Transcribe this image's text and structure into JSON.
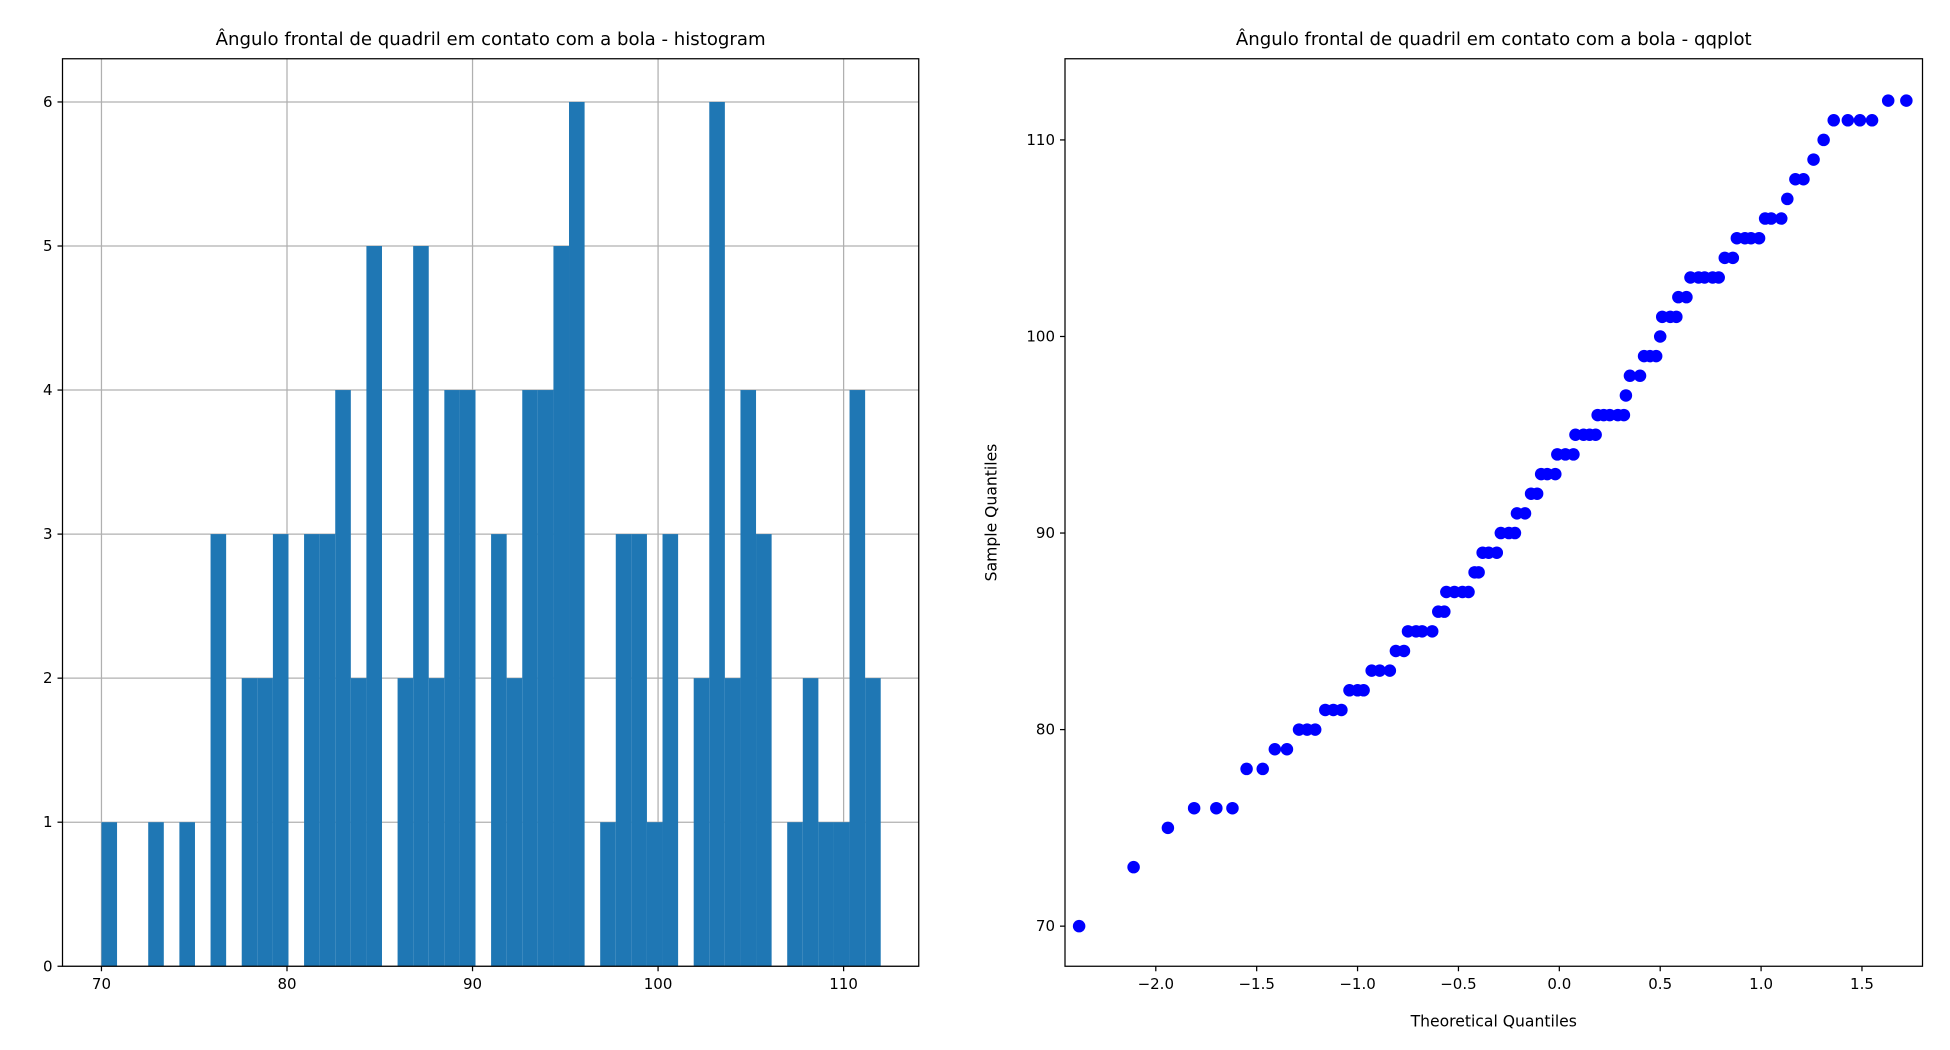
{
  "chart_data": [
    {
      "type": "histogram",
      "title": "Ângulo frontal de quadril em contato com a bola - histogram",
      "bins": [
        70,
        70.84,
        71.68,
        72.52,
        73.36,
        74.2,
        75.04,
        75.88,
        76.72,
        77.56,
        78.4,
        79.24,
        80.08,
        80.92,
        81.76,
        82.6,
        83.44,
        84.28,
        85.12,
        85.96,
        86.8,
        87.64,
        88.48,
        89.32,
        90.16,
        91,
        91.84,
        92.68,
        93.52,
        94.36,
        95.2,
        96.04,
        96.88,
        97.72,
        98.56,
        99.4,
        100.24,
        101.08,
        101.92,
        102.76,
        103.6,
        104.44,
        105.28,
        106.12,
        106.96,
        107.8,
        108.64,
        109.48,
        110.32,
        111.16,
        112
      ],
      "values": [
        1,
        0,
        0,
        1,
        0,
        1,
        0,
        3,
        0,
        2,
        2,
        3,
        0,
        3,
        3,
        4,
        2,
        5,
        0,
        2,
        5,
        2,
        4,
        4,
        0,
        3,
        2,
        4,
        4,
        5,
        6,
        0,
        1,
        3,
        3,
        1,
        3,
        0,
        2,
        6,
        2,
        4,
        3,
        0,
        1,
        2,
        1,
        1,
        4,
        2
      ],
      "color": "#1f77b4",
      "xlim": [
        67.9,
        114.05
      ],
      "xticks": [
        70,
        80,
        90,
        100,
        110
      ],
      "ylim": [
        0,
        6.3
      ],
      "yticks": [
        0,
        1,
        2,
        3,
        4,
        5,
        6
      ],
      "grid": true
    },
    {
      "type": "scatter",
      "title": "Ângulo frontal de quadril em contato com a bola - qqplot",
      "x_label": "Theoretical Quantiles",
      "y_label": "Sample Quantiles",
      "x": [
        -2.38,
        -2.11,
        -1.94,
        -1.81,
        -1.7,
        -1.62,
        -1.55,
        -1.47,
        -1.41,
        -1.35,
        -1.29,
        -1.25,
        -1.21,
        -1.16,
        -1.12,
        -1.08,
        -1.04,
        -1.0,
        -0.97,
        -0.93,
        -0.89,
        -0.84,
        -0.81,
        -0.77,
        -0.75,
        -0.71,
        -0.68,
        -0.63,
        -0.6,
        -0.57,
        -0.56,
        -0.52,
        -0.48,
        -0.45,
        -0.42,
        -0.4,
        -0.38,
        -0.35,
        -0.31,
        -0.29,
        -0.25,
        -0.22,
        -0.21,
        -0.17,
        -0.14,
        -0.11,
        -0.09,
        -0.06,
        -0.02,
        -0.01,
        0.03,
        0.07,
        0.08,
        0.12,
        0.15,
        0.18,
        0.19,
        0.22,
        0.25,
        0.29,
        0.32,
        0.33,
        0.35,
        0.4,
        0.42,
        0.45,
        0.48,
        0.5,
        0.51,
        0.55,
        0.58,
        0.59,
        0.63,
        0.65,
        0.69,
        0.72,
        0.76,
        0.79,
        0.82,
        0.86,
        0.88,
        0.92,
        0.95,
        0.99,
        1.02,
        1.05,
        1.1,
        1.13,
        1.17,
        1.21,
        1.26,
        1.31,
        1.36,
        1.43,
        1.49,
        1.55,
        1.63,
        1.72
      ],
      "values": [
        70,
        73,
        75,
        76,
        76,
        76,
        78,
        78,
        79,
        79,
        80,
        80,
        80,
        81,
        81,
        81,
        82,
        82,
        82,
        83,
        83,
        83,
        84,
        84,
        85,
        85,
        85,
        85,
        86,
        86,
        87,
        87,
        87,
        87,
        88,
        88,
        89,
        89,
        89,
        90,
        90,
        90,
        91,
        91,
        92,
        92,
        93,
        93,
        93,
        94,
        94,
        94,
        95,
        95,
        95,
        95,
        96,
        96,
        96,
        96,
        96,
        97,
        98,
        98,
        99,
        99,
        99,
        100,
        101,
        101,
        101,
        102,
        102,
        103,
        103,
        103,
        103,
        103,
        104,
        104,
        105,
        105,
        105,
        105,
        106,
        106,
        106,
        107,
        108,
        108,
        109,
        110,
        111,
        111,
        111,
        111,
        112,
        112
      ],
      "color": "#0000ff",
      "xlim": [
        -2.45,
        1.8
      ],
      "xticks": [
        {
          "value": -2,
          "label": "−2.0"
        },
        {
          "value": -1.5,
          "label": "−1.5"
        },
        {
          "value": -1,
          "label": "−1.0"
        },
        {
          "value": -0.5,
          "label": "−0.5"
        },
        {
          "value": 0,
          "label": "0.0"
        },
        0.5,
        {
          "value": 1,
          "label": "1.0"
        },
        1.5
      ],
      "ylim": [
        67.96,
        114.13
      ],
      "yticks": [
        70,
        80,
        90,
        100,
        110
      ],
      "grid": false
    }
  ]
}
